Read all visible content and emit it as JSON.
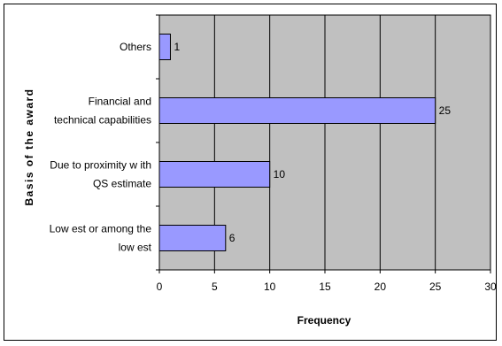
{
  "chart_data": {
    "type": "bar",
    "orientation": "horizontal",
    "categories": [
      [
        "Others"
      ],
      [
        "Financial and",
        "technical capabilities"
      ],
      [
        "Due to proximity w ith",
        "QS estimate"
      ],
      [
        "Low est or among the",
        "low est"
      ]
    ],
    "values": [
      1,
      25,
      10,
      6
    ],
    "data_labels": [
      "1",
      "25",
      "10",
      "6"
    ],
    "xlabel": "Frequency",
    "ylabel": "Basis of the award",
    "xlim": [
      0,
      30
    ],
    "xticks": [
      "0",
      "5",
      "10",
      "15",
      "20",
      "25",
      "30"
    ],
    "grid": "vertical",
    "legend": "none",
    "colors": {
      "plot_background": "#c0c0c0",
      "bar_fill": "#9999ff",
      "bar_stroke": "#000000",
      "gridline": "#000000"
    }
  }
}
